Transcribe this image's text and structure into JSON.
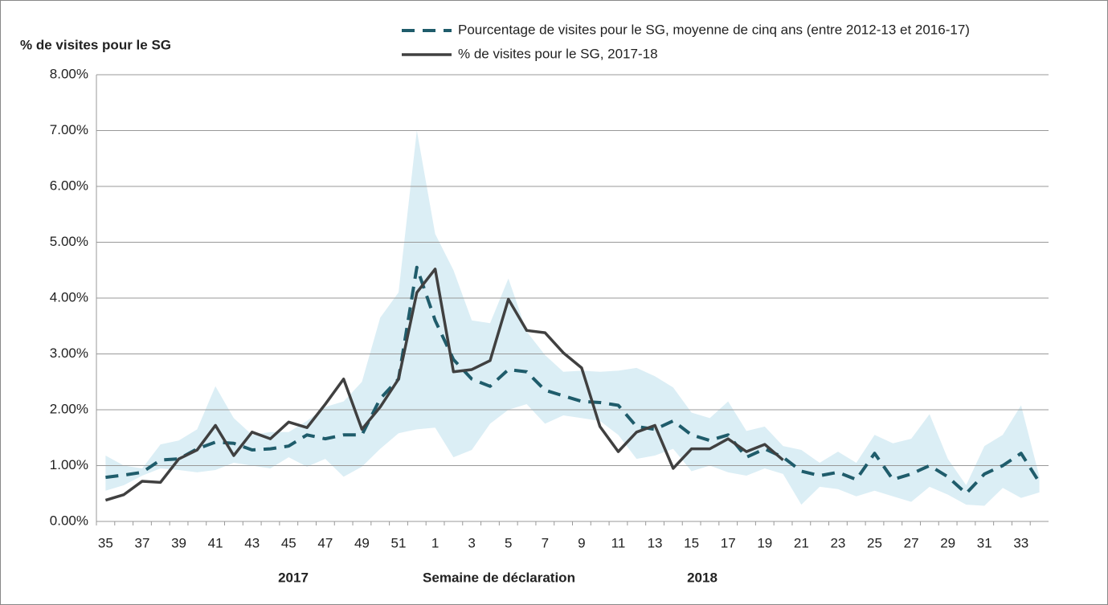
{
  "chart_data": {
    "type": "line",
    "y_label": "% de visites pour le SG",
    "x_label": "Semaine de déclaration",
    "annotations": [
      "2017",
      "2018"
    ],
    "categories": [
      "35",
      null,
      "37",
      null,
      "39",
      null,
      "41",
      null,
      "43",
      null,
      "45",
      null,
      "47",
      null,
      "49",
      null,
      "51",
      null,
      "1",
      null,
      "3",
      null,
      "5",
      null,
      "7",
      null,
      "9",
      null,
      "11",
      null,
      "13",
      null,
      "15",
      null,
      "17",
      null,
      "19",
      null,
      "21",
      null,
      "23",
      null,
      "25",
      null,
      "27",
      null,
      "29",
      null,
      "31",
      null,
      "33",
      null
    ],
    "series": [
      {
        "name": "Pourcentage de visites pour le SG, moyenne de cinq ans (entre 2012-13 et 2016-17)",
        "color": "#1f5c6b",
        "dashed": true,
        "values": [
          0.79,
          0.83,
          0.88,
          1.1,
          1.12,
          1.3,
          1.42,
          1.4,
          1.28,
          1.3,
          1.35,
          1.55,
          1.48,
          1.55,
          1.55,
          2.2,
          2.55,
          4.55,
          3.6,
          2.9,
          2.55,
          2.42,
          2.72,
          2.68,
          2.35,
          2.25,
          2.15,
          2.13,
          2.08,
          1.7,
          1.65,
          1.8,
          1.55,
          1.45,
          1.55,
          1.15,
          1.3,
          1.15,
          0.9,
          0.82,
          0.88,
          0.75,
          1.22,
          0.75,
          0.85,
          1.0,
          0.8,
          0.5,
          0.85,
          1.0,
          1.22,
          0.7
        ]
      },
      {
        "name": "% de visites pour le SG, 2017-18",
        "color": "#404040",
        "dashed": false,
        "values": [
          0.38,
          0.48,
          0.72,
          0.7,
          1.12,
          1.28,
          1.72,
          1.18,
          1.6,
          1.48,
          1.78,
          1.68,
          2.1,
          2.55,
          1.65,
          2.05,
          2.55,
          4.1,
          4.52,
          2.68,
          2.72,
          2.88,
          3.98,
          3.42,
          3.38,
          3.02,
          2.75,
          1.7,
          1.25,
          1.6,
          1.72,
          0.95,
          1.3,
          1.3,
          1.48,
          1.25,
          1.38,
          1.1,
          null,
          null,
          null,
          null,
          null,
          null,
          null,
          null,
          null,
          null,
          null,
          null,
          null,
          null
        ]
      }
    ],
    "band": {
      "color": "#dbeef5",
      "upper": [
        1.18,
        1.0,
        0.95,
        1.38,
        1.45,
        1.65,
        2.42,
        1.85,
        1.55,
        1.6,
        1.6,
        1.8,
        2.05,
        2.15,
        2.5,
        3.65,
        4.1,
        7.0,
        5.15,
        4.5,
        3.6,
        3.55,
        4.35,
        3.4,
        2.98,
        2.68,
        2.7,
        2.68,
        2.7,
        2.75,
        2.6,
        2.4,
        1.95,
        1.85,
        2.15,
        1.62,
        1.7,
        1.35,
        1.28,
        1.05,
        1.25,
        1.05,
        1.55,
        1.4,
        1.48,
        1.92,
        1.12,
        0.65,
        1.35,
        1.55,
        2.08,
        0.8
      ],
      "lower": [
        0.55,
        0.65,
        0.82,
        0.95,
        0.92,
        0.88,
        0.92,
        1.05,
        1.0,
        0.95,
        1.15,
        0.98,
        1.12,
        0.8,
        0.98,
        1.3,
        1.58,
        1.65,
        1.68,
        1.15,
        1.28,
        1.75,
        2.0,
        2.1,
        1.75,
        1.9,
        1.85,
        1.8,
        1.55,
        1.12,
        1.18,
        1.3,
        0.9,
        1.0,
        0.88,
        0.82,
        0.95,
        0.85,
        0.3,
        0.62,
        0.58,
        0.45,
        0.55,
        0.45,
        0.35,
        0.62,
        0.48,
        0.3,
        0.28,
        0.6,
        0.42,
        0.52
      ]
    },
    "ylim": [
      0,
      8
    ],
    "yticks": [
      {
        "value": 0,
        "label": "0.00%"
      },
      {
        "value": 1,
        "label": "1.00%"
      },
      {
        "value": 2,
        "label": "2.00%"
      },
      {
        "value": 3,
        "label": "3.00%"
      },
      {
        "value": 4,
        "label": "4.00%"
      },
      {
        "value": 5,
        "label": "5.00%"
      },
      {
        "value": 6,
        "label": "6.00%"
      },
      {
        "value": 7,
        "label": "7.00%"
      },
      {
        "value": 8,
        "label": "8.00%"
      }
    ],
    "grid": true
  }
}
